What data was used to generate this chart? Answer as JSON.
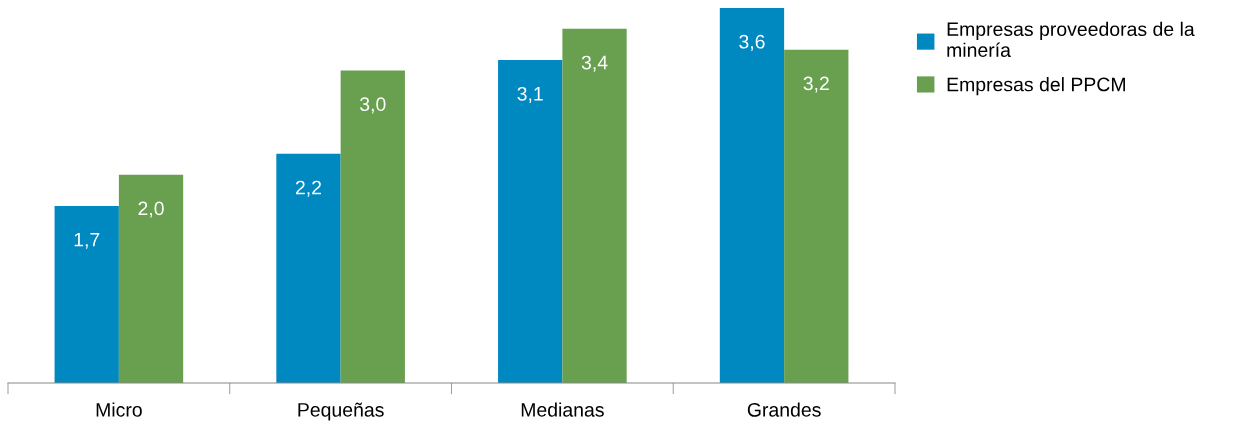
{
  "chart_data": {
    "type": "bar",
    "categories": [
      "Micro",
      "Pequeñas",
      "Medianas",
      "Grandes"
    ],
    "series": [
      {
        "name": "Empresas proveedoras de la\nminería",
        "color": "#0088c0",
        "values": [
          1.7,
          2.2,
          3.1,
          3.6
        ],
        "value_labels": [
          "1,7",
          "2,2",
          "3,1",
          "3,6"
        ]
      },
      {
        "name": "Empresas del PPCM",
        "color": "#69a050",
        "values": [
          2.0,
          3.0,
          3.4,
          3.2
        ],
        "value_labels": [
          "2,0",
          "3,0",
          "3,4",
          "3,2"
        ]
      }
    ],
    "legend": "top right",
    "grid": false
  }
}
